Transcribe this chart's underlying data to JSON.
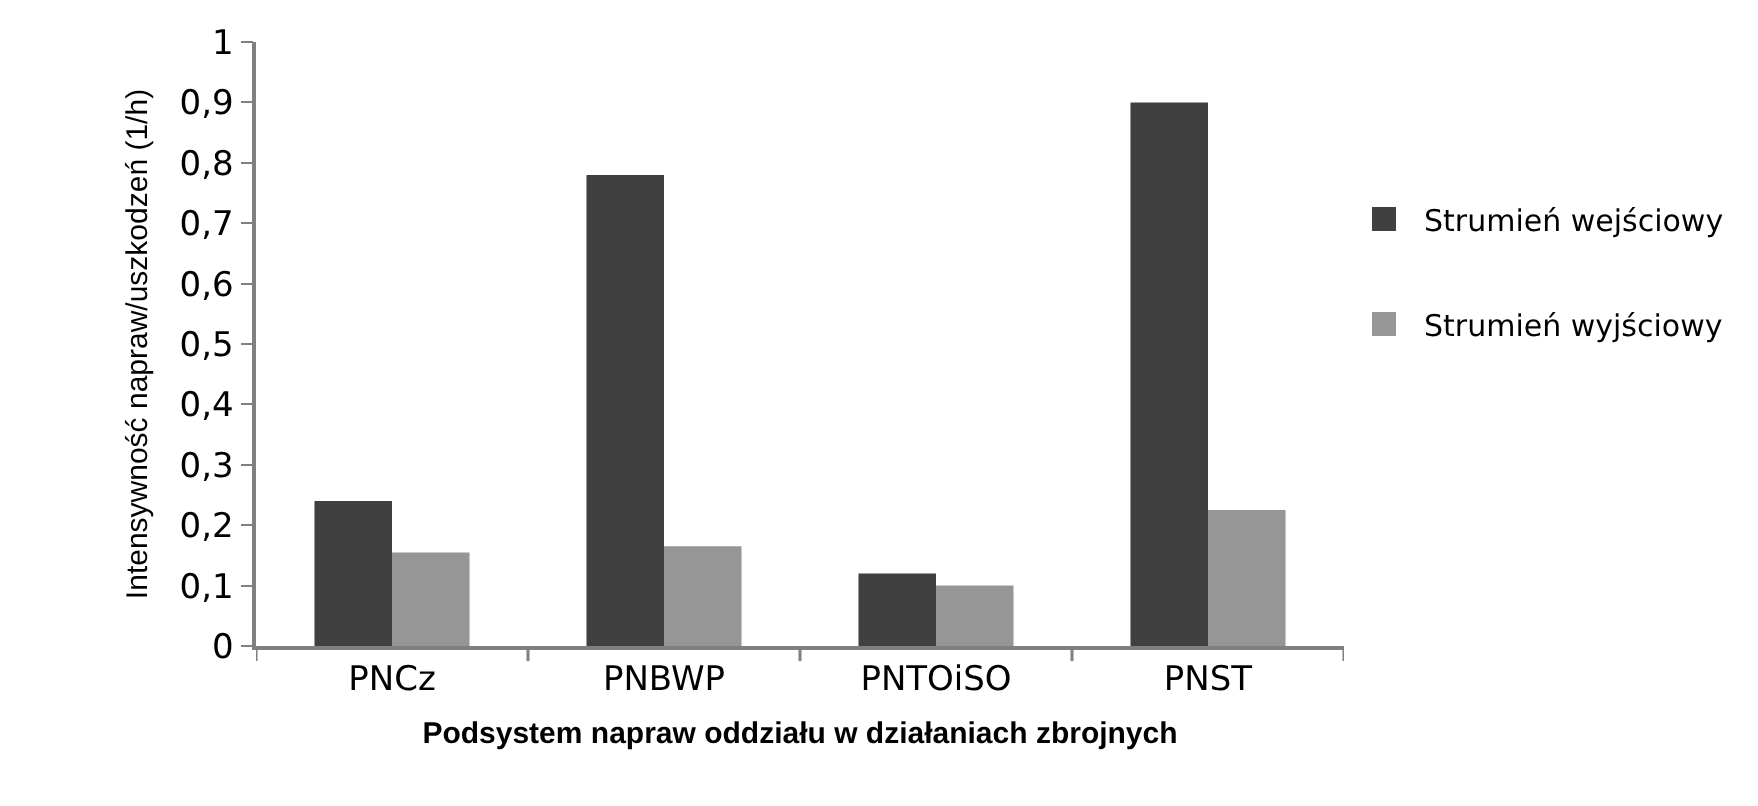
{
  "chart_data": {
    "type": "bar",
    "xlabel": "Podsystem napraw oddziału w działaniach zbrojnych",
    "ylabel": "Intensywność napraw/uszkodzeń (1/h)",
    "categories": [
      "PNCz",
      "PNBWP",
      "PNTOiSO",
      "PNST"
    ],
    "series": [
      {
        "name": "Strumień wejściowy",
        "color": "#404040",
        "values": [
          0.24,
          0.78,
          0.12,
          0.9
        ]
      },
      {
        "name": "Strumień wyjściowy",
        "color": "#969696",
        "values": [
          0.155,
          0.165,
          0.1,
          0.225
        ]
      }
    ],
    "ylim": [
      0,
      1
    ],
    "yticks": [
      0,
      {
        "value": 0.1,
        "label": "0,1"
      },
      {
        "value": 0.2,
        "label": "0,2"
      },
      {
        "value": 0.3,
        "label": "0,3"
      },
      {
        "value": 0.4,
        "label": "0,4"
      },
      {
        "value": 0.5,
        "label": "0,5"
      },
      {
        "value": 0.6,
        "label": "0,6"
      },
      {
        "value": 0.7,
        "label": "0,7"
      },
      {
        "value": 0.8,
        "label": "0,8"
      },
      {
        "value": 0.9,
        "label": "0,9"
      },
      1
    ],
    "legend": "right"
  }
}
